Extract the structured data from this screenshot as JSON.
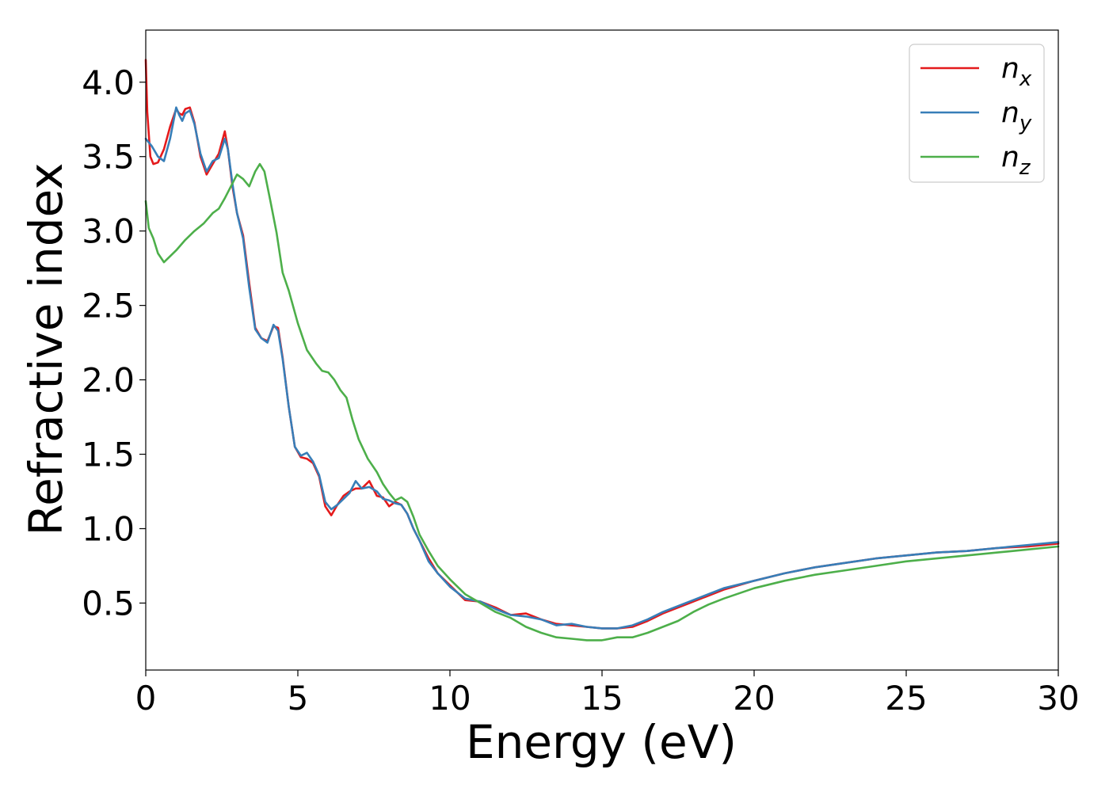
{
  "chart_data": {
    "type": "line",
    "title": "",
    "xlabel": "Energy (eV)",
    "ylabel": "Refractive index",
    "xlim": [
      0,
      30
    ],
    "ylim": [
      0.05,
      4.35
    ],
    "xticks": [
      0,
      5,
      10,
      15,
      20,
      25,
      30
    ],
    "yticks": [
      0.5,
      1.0,
      1.5,
      2.0,
      2.5,
      3.0,
      3.5,
      4.0
    ],
    "grid": false,
    "legend_position": "top-right",
    "series": [
      {
        "name": "n",
        "subscript": "x",
        "color": "#e41a1c",
        "x": [
          0,
          0.05,
          0.15,
          0.25,
          0.4,
          0.6,
          0.8,
          1.0,
          1.1,
          1.2,
          1.3,
          1.45,
          1.6,
          1.8,
          2.0,
          2.2,
          2.4,
          2.6,
          2.7,
          2.85,
          3.0,
          3.2,
          3.4,
          3.6,
          3.8,
          4.0,
          4.2,
          4.35,
          4.5,
          4.7,
          4.9,
          5.1,
          5.3,
          5.5,
          5.7,
          5.9,
          6.1,
          6.3,
          6.5,
          6.7,
          6.9,
          7.1,
          7.35,
          7.6,
          7.8,
          8.0,
          8.2,
          8.4,
          8.6,
          8.8,
          9.0,
          9.3,
          9.6,
          10.0,
          10.5,
          11.0,
          11.5,
          12.0,
          12.5,
          13.0,
          13.5,
          14.0,
          14.5,
          15.0,
          15.5,
          16.0,
          16.5,
          17.0,
          17.5,
          18.0,
          19.0,
          20.0,
          21.0,
          22.0,
          23.0,
          24.0,
          25.0,
          26.0,
          27.0,
          28.0,
          29.0,
          30.0
        ],
        "y": [
          4.15,
          3.8,
          3.5,
          3.45,
          3.46,
          3.55,
          3.7,
          3.82,
          3.79,
          3.78,
          3.82,
          3.83,
          3.73,
          3.5,
          3.38,
          3.45,
          3.52,
          3.67,
          3.55,
          3.3,
          3.12,
          2.97,
          2.65,
          2.35,
          2.28,
          2.26,
          2.36,
          2.35,
          2.15,
          1.82,
          1.55,
          1.48,
          1.47,
          1.44,
          1.35,
          1.15,
          1.09,
          1.16,
          1.22,
          1.25,
          1.27,
          1.27,
          1.32,
          1.22,
          1.21,
          1.15,
          1.18,
          1.16,
          1.1,
          1.0,
          0.92,
          0.8,
          0.7,
          0.62,
          0.52,
          0.51,
          0.47,
          0.42,
          0.43,
          0.39,
          0.36,
          0.35,
          0.34,
          0.33,
          0.33,
          0.34,
          0.38,
          0.43,
          0.47,
          0.51,
          0.59,
          0.65,
          0.7,
          0.74,
          0.77,
          0.8,
          0.82,
          0.84,
          0.85,
          0.87,
          0.88,
          0.9
        ]
      },
      {
        "name": "n",
        "subscript": "y",
        "color": "#377eb8",
        "x": [
          0,
          0.2,
          0.4,
          0.6,
          0.8,
          1.0,
          1.1,
          1.2,
          1.3,
          1.45,
          1.6,
          1.8,
          2.0,
          2.2,
          2.4,
          2.6,
          2.7,
          2.85,
          3.0,
          3.2,
          3.4,
          3.6,
          3.8,
          4.0,
          4.2,
          4.35,
          4.5,
          4.7,
          4.9,
          5.1,
          5.3,
          5.5,
          5.7,
          5.9,
          6.1,
          6.3,
          6.5,
          6.7,
          6.9,
          7.1,
          7.35,
          7.6,
          7.8,
          8.0,
          8.2,
          8.4,
          8.6,
          8.8,
          9.0,
          9.3,
          9.6,
          10.0,
          10.5,
          11.0,
          11.5,
          12.0,
          12.5,
          13.0,
          13.5,
          14.0,
          14.5,
          15.0,
          15.5,
          16.0,
          16.5,
          17.0,
          17.5,
          18.0,
          19.0,
          20.0,
          21.0,
          22.0,
          23.0,
          24.0,
          25.0,
          26.0,
          27.0,
          28.0,
          29.0,
          30.0
        ],
        "y": [
          3.62,
          3.57,
          3.5,
          3.47,
          3.62,
          3.83,
          3.78,
          3.74,
          3.79,
          3.81,
          3.72,
          3.52,
          3.4,
          3.47,
          3.49,
          3.62,
          3.55,
          3.32,
          3.12,
          2.95,
          2.62,
          2.34,
          2.28,
          2.25,
          2.37,
          2.33,
          2.14,
          1.82,
          1.55,
          1.49,
          1.51,
          1.45,
          1.36,
          1.18,
          1.13,
          1.16,
          1.2,
          1.24,
          1.32,
          1.27,
          1.28,
          1.25,
          1.2,
          1.19,
          1.17,
          1.16,
          1.1,
          1.0,
          0.92,
          0.78,
          0.7,
          0.61,
          0.53,
          0.51,
          0.46,
          0.42,
          0.41,
          0.39,
          0.35,
          0.36,
          0.34,
          0.33,
          0.33,
          0.35,
          0.39,
          0.44,
          0.48,
          0.52,
          0.6,
          0.65,
          0.7,
          0.74,
          0.77,
          0.8,
          0.82,
          0.84,
          0.85,
          0.87,
          0.89,
          0.91
        ]
      },
      {
        "name": "n",
        "subscript": "z",
        "color": "#4daf4a",
        "x": [
          0,
          0.1,
          0.25,
          0.4,
          0.6,
          0.8,
          1.0,
          1.3,
          1.6,
          1.9,
          2.2,
          2.4,
          2.6,
          2.8,
          3.0,
          3.2,
          3.4,
          3.6,
          3.75,
          3.9,
          4.1,
          4.3,
          4.5,
          4.7,
          5.0,
          5.3,
          5.6,
          5.8,
          6.0,
          6.2,
          6.4,
          6.6,
          6.8,
          7.0,
          7.3,
          7.6,
          7.8,
          8.0,
          8.2,
          8.4,
          8.6,
          8.8,
          9.0,
          9.3,
          9.6,
          10.0,
          10.5,
          11.0,
          11.5,
          12.0,
          12.5,
          13.0,
          13.5,
          14.0,
          14.5,
          15.0,
          15.5,
          16.0,
          16.5,
          17.0,
          17.5,
          18.0,
          18.5,
          19.0,
          20.0,
          21.0,
          22.0,
          23.0,
          24.0,
          25.0,
          26.0,
          27.0,
          28.0,
          29.0,
          30.0
        ],
        "y": [
          3.2,
          3.02,
          2.95,
          2.85,
          2.79,
          2.83,
          2.87,
          2.94,
          3.0,
          3.05,
          3.12,
          3.15,
          3.22,
          3.3,
          3.38,
          3.35,
          3.3,
          3.4,
          3.45,
          3.4,
          3.2,
          2.99,
          2.72,
          2.6,
          2.38,
          2.2,
          2.11,
          2.06,
          2.05,
          2.0,
          1.93,
          1.88,
          1.73,
          1.6,
          1.47,
          1.38,
          1.3,
          1.24,
          1.19,
          1.21,
          1.18,
          1.08,
          0.96,
          0.85,
          0.75,
          0.66,
          0.56,
          0.5,
          0.44,
          0.4,
          0.34,
          0.3,
          0.27,
          0.26,
          0.25,
          0.25,
          0.27,
          0.27,
          0.3,
          0.34,
          0.38,
          0.44,
          0.49,
          0.53,
          0.6,
          0.65,
          0.69,
          0.72,
          0.75,
          0.78,
          0.8,
          0.82,
          0.84,
          0.86,
          0.88
        ]
      }
    ]
  }
}
